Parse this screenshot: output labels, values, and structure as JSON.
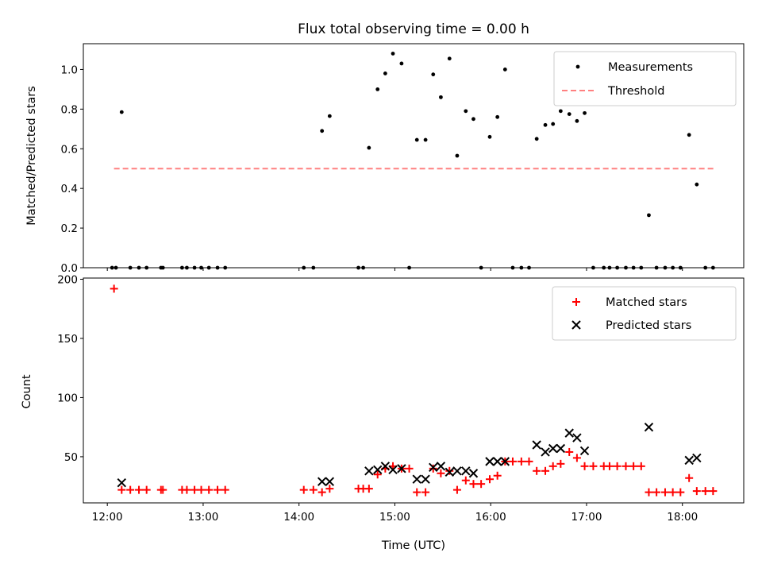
{
  "title": "Flux total observing time = 0.00 h",
  "chart_data": [
    {
      "type": "scatter",
      "name": "ratio-panel",
      "ylabel": "Matched/Predicted stars",
      "xlabel": "",
      "ylim": [
        0,
        1.13
      ],
      "yticks": [
        0.0,
        0.2,
        0.4,
        0.6,
        0.8,
        1.0
      ],
      "ytick_labels": [
        "0.0",
        "0.2",
        "0.4",
        "0.6",
        "0.8",
        "1.0"
      ],
      "grid": false,
      "legend": {
        "placement": "top-right",
        "entries": [
          "Measurements",
          "Threshold"
        ]
      },
      "threshold": {
        "name": "Threshold",
        "value": 0.5,
        "x_start": 12.07,
        "x_end": 18.33,
        "color": "#ff8080"
      },
      "series": [
        {
          "name": "Measurements",
          "color": "#000000",
          "points": [
            [
              12.05,
              0
            ],
            [
              12.09,
              0
            ],
            [
              12.15,
              0.785
            ],
            [
              12.24,
              0
            ],
            [
              12.33,
              0
            ],
            [
              12.41,
              0
            ],
            [
              12.56,
              0
            ],
            [
              12.58,
              0
            ],
            [
              12.78,
              0
            ],
            [
              12.83,
              0
            ],
            [
              12.91,
              0
            ],
            [
              12.98,
              0
            ],
            [
              13.06,
              0
            ],
            [
              13.15,
              0
            ],
            [
              13.23,
              0
            ],
            [
              14.05,
              0
            ],
            [
              14.15,
              0
            ],
            [
              14.24,
              0.69
            ],
            [
              14.32,
              0.765
            ],
            [
              14.62,
              0
            ],
            [
              14.67,
              0
            ],
            [
              14.73,
              0.605
            ],
            [
              14.82,
              0.9
            ],
            [
              14.9,
              0.98
            ],
            [
              14.98,
              1.08
            ],
            [
              15.07,
              1.03
            ],
            [
              15.15,
              0
            ],
            [
              15.23,
              0.645
            ],
            [
              15.32,
              0.645
            ],
            [
              15.4,
              0.975
            ],
            [
              15.48,
              0.86
            ],
            [
              15.57,
              1.055
            ],
            [
              15.65,
              0.565
            ],
            [
              15.74,
              0.79
            ],
            [
              15.82,
              0.75
            ],
            [
              15.9,
              0
            ],
            [
              15.99,
              0.66
            ],
            [
              16.07,
              0.76
            ],
            [
              16.15,
              1.0
            ],
            [
              16.23,
              0
            ],
            [
              16.32,
              0
            ],
            [
              16.4,
              0
            ],
            [
              16.48,
              0.65
            ],
            [
              16.57,
              0.72
            ],
            [
              16.65,
              0.725
            ],
            [
              16.73,
              0.79
            ],
            [
              16.82,
              0.775
            ],
            [
              16.9,
              0.74
            ],
            [
              16.98,
              0.78
            ],
            [
              17.07,
              0
            ],
            [
              17.18,
              0
            ],
            [
              17.24,
              0
            ],
            [
              17.32,
              0
            ],
            [
              17.41,
              0
            ],
            [
              17.49,
              0
            ],
            [
              17.57,
              0
            ],
            [
              17.65,
              0.265
            ],
            [
              17.73,
              0
            ],
            [
              17.82,
              0
            ],
            [
              17.9,
              0
            ],
            [
              17.98,
              0
            ],
            [
              18.07,
              0.67
            ],
            [
              18.15,
              0.42
            ],
            [
              18.24,
              0
            ],
            [
              18.32,
              0
            ]
          ]
        }
      ]
    },
    {
      "type": "scatter",
      "name": "count-panel",
      "xlabel": "Time (UTC)",
      "ylabel": "Count",
      "xlim": [
        11.75,
        18.64
      ],
      "ylim": [
        11,
        201
      ],
      "xticks": [
        12,
        13,
        14,
        15,
        16,
        17,
        18
      ],
      "xtick_labels": [
        "12:00",
        "13:00",
        "14:00",
        "15:00",
        "16:00",
        "17:00",
        "18:00"
      ],
      "yticks": [
        50,
        100,
        150,
        200
      ],
      "ytick_labels": [
        "50",
        "100",
        "150",
        "200"
      ],
      "grid": false,
      "legend": {
        "placement": "top-right",
        "entries": [
          "Matched stars",
          "Predicted stars"
        ]
      },
      "series": [
        {
          "name": "Matched stars",
          "marker": "+",
          "color": "#ff0000",
          "points": [
            [
              12.07,
              192
            ],
            [
              12.15,
              22
            ],
            [
              12.24,
              22
            ],
            [
              12.33,
              22
            ],
            [
              12.41,
              22
            ],
            [
              12.56,
              22
            ],
            [
              12.58,
              22
            ],
            [
              12.78,
              22
            ],
            [
              12.83,
              22
            ],
            [
              12.91,
              22
            ],
            [
              12.98,
              22
            ],
            [
              13.06,
              22
            ],
            [
              13.15,
              22
            ],
            [
              13.23,
              22
            ],
            [
              14.05,
              22
            ],
            [
              14.15,
              22
            ],
            [
              14.24,
              20
            ],
            [
              14.32,
              23
            ],
            [
              14.62,
              23
            ],
            [
              14.67,
              23
            ],
            [
              14.73,
              23
            ],
            [
              14.82,
              35
            ],
            [
              14.9,
              40
            ],
            [
              14.98,
              42
            ],
            [
              15.07,
              40
            ],
            [
              15.15,
              40
            ],
            [
              15.23,
              20
            ],
            [
              15.32,
              20
            ],
            [
              15.4,
              40
            ],
            [
              15.48,
              36
            ],
            [
              15.57,
              38
            ],
            [
              15.65,
              22
            ],
            [
              15.74,
              30
            ],
            [
              15.82,
              27
            ],
            [
              15.9,
              27
            ],
            [
              15.99,
              31
            ],
            [
              16.07,
              34
            ],
            [
              16.15,
              46
            ],
            [
              16.23,
              46
            ],
            [
              16.32,
              46
            ],
            [
              16.4,
              46
            ],
            [
              16.48,
              38
            ],
            [
              16.57,
              38
            ],
            [
              16.65,
              42
            ],
            [
              16.73,
              44
            ],
            [
              16.82,
              54
            ],
            [
              16.9,
              49
            ],
            [
              16.98,
              42
            ],
            [
              17.07,
              42
            ],
            [
              17.18,
              42
            ],
            [
              17.24,
              42
            ],
            [
              17.32,
              42
            ],
            [
              17.41,
              42
            ],
            [
              17.49,
              42
            ],
            [
              17.57,
              42
            ],
            [
              17.65,
              20
            ],
            [
              17.73,
              20
            ],
            [
              17.82,
              20
            ],
            [
              17.9,
              20
            ],
            [
              17.98,
              20
            ],
            [
              18.07,
              32
            ],
            [
              18.15,
              21
            ],
            [
              18.24,
              21
            ],
            [
              18.32,
              21
            ]
          ]
        },
        {
          "name": "Predicted stars",
          "marker": "x",
          "color": "#000000",
          "points": [
            [
              12.15,
              28
            ],
            [
              14.24,
              29
            ],
            [
              14.32,
              29
            ],
            [
              14.73,
              38
            ],
            [
              14.82,
              39
            ],
            [
              14.9,
              42
            ],
            [
              14.98,
              39
            ],
            [
              15.07,
              40
            ],
            [
              15.23,
              31
            ],
            [
              15.32,
              31
            ],
            [
              15.4,
              41
            ],
            [
              15.48,
              42
            ],
            [
              15.57,
              37
            ],
            [
              15.65,
              38
            ],
            [
              15.74,
              38
            ],
            [
              15.82,
              36
            ],
            [
              15.99,
              46
            ],
            [
              16.07,
              46
            ],
            [
              16.15,
              46
            ],
            [
              16.48,
              60
            ],
            [
              16.57,
              54
            ],
            [
              16.65,
              57
            ],
            [
              16.73,
              57
            ],
            [
              16.82,
              70
            ],
            [
              16.9,
              66
            ],
            [
              16.98,
              55
            ],
            [
              17.65,
              75
            ],
            [
              18.07,
              47
            ],
            [
              18.15,
              49
            ]
          ]
        }
      ]
    }
  ]
}
